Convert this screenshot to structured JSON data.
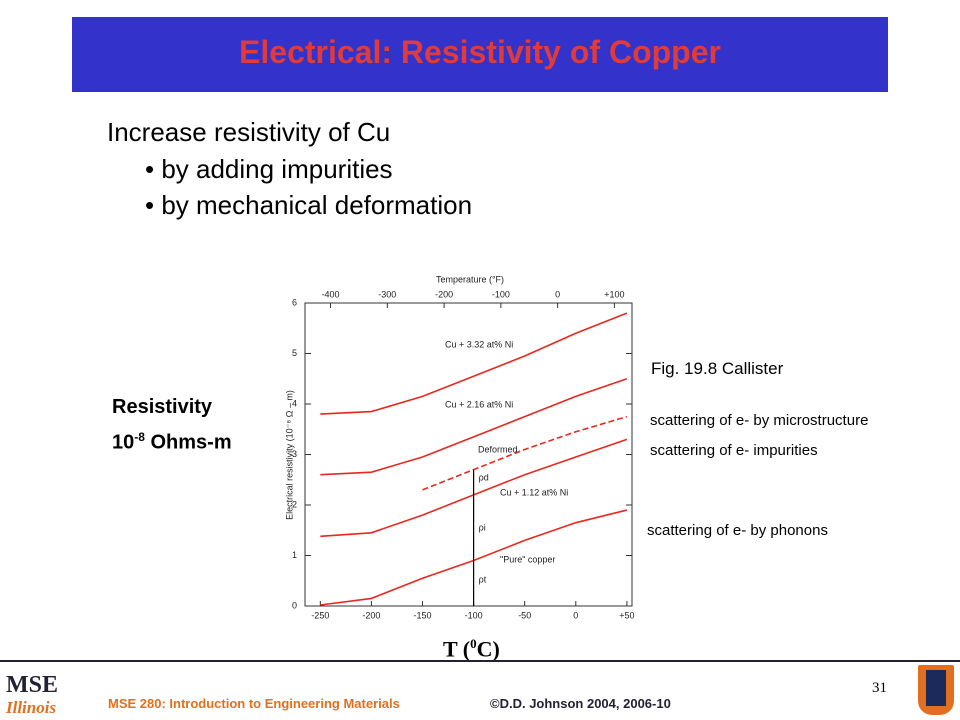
{
  "header": {
    "title": "Electrical:  Resistivity of Copper"
  },
  "body": {
    "intro": "Increase resistivity of Cu",
    "bullets": [
      "by adding impurities",
      "by mechanical deformation"
    ],
    "ylabel_slide": {
      "word": "Resistivity",
      "base": "10",
      "exp": "-8",
      "unit": " Ohms-m"
    },
    "xlabel_slide": {
      "pre": "T (",
      "sup": "0",
      "post": "C)"
    },
    "figref": "Fig. 19.8 Callister",
    "notes": [
      "scattering of e- by microstructure",
      "scattering of e- impurities",
      "scattering of e- by phonons"
    ]
  },
  "chart_data": {
    "type": "line",
    "xlabel_top": "Temperature (°F)",
    "ylabel": "Electrical resistivity (10⁻⁸ Ω – m)",
    "x": [
      -250,
      -200,
      -150,
      -100,
      -50,
      0,
      50
    ],
    "series": [
      {
        "name": "Cu + 3.32 at% Ni",
        "color": "#e8281e",
        "values": [
          3.8,
          3.85,
          4.15,
          4.55,
          4.95,
          5.4,
          5.8
        ]
      },
      {
        "name": "Cu + 2.16 at% Ni",
        "color": "#e8281e",
        "values": [
          2.6,
          2.65,
          2.95,
          3.35,
          3.75,
          4.15,
          4.5
        ]
      },
      {
        "name": "Deformed",
        "color": "#e8281e",
        "values": [
          null,
          null,
          2.3,
          2.7,
          3.1,
          3.45,
          3.75
        ]
      },
      {
        "name": "Cu + 1.12 at% Ni",
        "color": "#e8281e",
        "values": [
          1.38,
          1.45,
          1.8,
          2.2,
          2.6,
          2.95,
          3.3
        ]
      },
      {
        "name": "\"Pure\" copper",
        "color": "#e8281e",
        "values": [
          0.02,
          0.15,
          0.55,
          0.9,
          1.3,
          1.65,
          1.9
        ]
      }
    ],
    "annotations": [
      "ρd",
      "ρi",
      "ρt"
    ],
    "xlim": [
      -265,
      55
    ],
    "xticks": [
      -250,
      -200,
      -150,
      -100,
      -50,
      0,
      {
        "value": 50,
        "label": "+50"
      }
    ],
    "x2lim": [
      -445,
      131
    ],
    "x2ticks": [
      -400,
      -300,
      -200,
      -100,
      0,
      {
        "value": 100,
        "label": "+100"
      }
    ],
    "ylim": [
      0,
      6
    ],
    "yticks": [
      0,
      1,
      2,
      3,
      4,
      5,
      6
    ]
  },
  "footer": {
    "course": "MSE 280: Introduction to Engineering Materials",
    "copyright": "©D.D. Johnson 2004, 2006-10",
    "page": "31",
    "logo_top": "MSE",
    "logo_bottom": "Illinois"
  }
}
